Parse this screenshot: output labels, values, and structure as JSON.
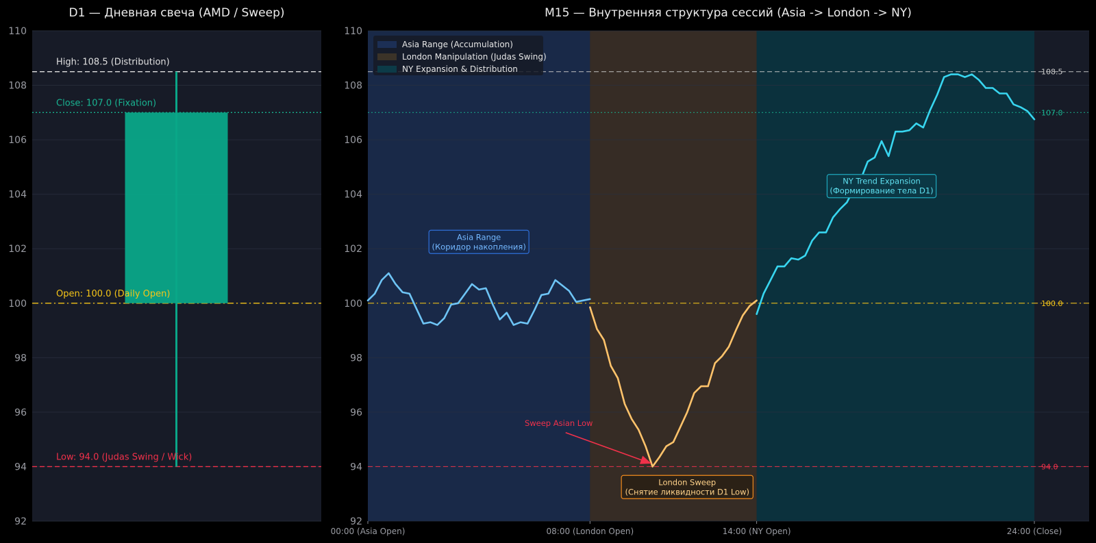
{
  "chart_data": [
    {
      "type": "candlestick",
      "title": "D1 — Дневная свеча (AMD / Sweep)",
      "ylim": [
        92,
        110
      ],
      "yticks": [
        92,
        94,
        96,
        98,
        100,
        102,
        104,
        106,
        108,
        110
      ],
      "candle": {
        "open": 100.0,
        "high": 108.5,
        "low": 94.0,
        "close": 107.0
      },
      "levels": [
        {
          "label": "High: 108.5 (Distribution)",
          "value": 108.5,
          "color": "#e0e0e0",
          "style": "dashed"
        },
        {
          "label": "Close: 107.0 (Fixation)",
          "value": 107.0,
          "color": "#19b391",
          "style": "dotted"
        },
        {
          "label": "Open: 100.0 (Daily Open)",
          "value": 100.0,
          "color": "#f5c518",
          "style": "dashdot"
        },
        {
          "label": "Low: 94.0 (Judas Swing / Wick)",
          "value": 94.0,
          "color": "#f0314a",
          "style": "dashed"
        }
      ],
      "colors": {
        "body": "#0aa688",
        "wick": "#0aa688"
      }
    },
    {
      "type": "line",
      "title": "M15 — Внутренняя структура сессий (Asia -> London -> NY)",
      "ylim": [
        92,
        110
      ],
      "xlim": [
        0,
        96
      ],
      "yticks": [
        92,
        94,
        96,
        98,
        100,
        102,
        104,
        106,
        108,
        110
      ],
      "xticks": [
        {
          "value": 0,
          "label": "00:00 (Asia Open)"
        },
        {
          "value": 32,
          "label": "08:00 (London Open)"
        },
        {
          "value": 56,
          "label": "14:00 (NY Open)"
        },
        {
          "value": 96,
          "label": "24:00 (Close)"
        }
      ],
      "legend": [
        {
          "label": "Asia Range (Accumulation)",
          "color": "#1c2f55"
        },
        {
          "label": "London Manipulation (Judas Swing)",
          "color": "#3b3328"
        },
        {
          "label": "NY Expansion & Distribution",
          "color": "#0c3b48"
        }
      ],
      "sessions": [
        {
          "name": "Asia Range (Accumulation)",
          "x0": 0,
          "x1": 32,
          "color": "#1a2b4c"
        },
        {
          "name": "London Manipulation (Judas Swing)",
          "x0": 32,
          "x1": 56,
          "color": "#3a2f26"
        },
        {
          "name": "NY Expansion & Distribution",
          "x0": 56,
          "x1": 96,
          "color": "#0a3440"
        }
      ],
      "levels": [
        {
          "value": 108.5,
          "label": "108.5",
          "color": "#c8c8c8",
          "style": "dashed"
        },
        {
          "value": 107.0,
          "label": "107.0",
          "color": "#19b391",
          "style": "dotted"
        },
        {
          "value": 100.0,
          "label": "100.0",
          "color": "#f5c518",
          "style": "dashdot"
        },
        {
          "value": 94.0,
          "label": "94.0",
          "color": "#f0314a",
          "style": "dashed"
        }
      ],
      "series": [
        {
          "color": "#6ec4f5",
          "x": [
            0,
            1,
            2,
            3,
            4,
            5,
            6,
            7,
            8,
            9,
            10,
            11,
            12,
            13,
            14,
            15,
            16,
            17,
            18,
            19,
            20,
            21,
            22,
            23,
            24,
            25,
            26,
            27,
            28,
            29,
            30,
            31,
            32
          ],
          "y": [
            100.1,
            100.35,
            100.85,
            101.1,
            100.7,
            100.4,
            100.35,
            99.8,
            99.25,
            99.3,
            99.2,
            99.45,
            99.95,
            100.0,
            100.35,
            100.7,
            100.5,
            100.55,
            99.95,
            99.4,
            99.65,
            99.2,
            99.3,
            99.25,
            99.75,
            100.3,
            100.35,
            100.85,
            100.65,
            100.45,
            100.05,
            100.1,
            100.15
          ]
        },
        {
          "color": "#ffc36b",
          "x": [
            32,
            33,
            34,
            35,
            36,
            37,
            38,
            39,
            40,
            41,
            42,
            43,
            44,
            45,
            46,
            47,
            48,
            49,
            50,
            51,
            52,
            53,
            54,
            55,
            56
          ],
          "y": [
            99.85,
            99.05,
            98.65,
            97.7,
            97.25,
            96.3,
            95.75,
            95.35,
            94.75,
            94.0,
            94.35,
            94.75,
            94.9,
            95.45,
            96.0,
            96.7,
            96.95,
            96.95,
            97.8,
            98.05,
            98.4,
            99.0,
            99.55,
            99.9,
            100.1
          ]
        },
        {
          "color": "#38d6f0",
          "x": [
            56,
            57,
            58,
            59,
            60,
            61,
            62,
            63,
            64,
            65,
            66,
            67,
            68,
            69,
            70,
            71,
            72,
            73,
            74,
            75,
            76,
            77,
            78,
            79,
            80,
            81,
            82,
            83,
            84,
            85,
            86,
            87,
            88,
            89,
            90,
            91,
            92,
            93,
            94,
            95,
            96
          ],
          "y": [
            99.6,
            100.35,
            100.85,
            101.35,
            101.35,
            101.65,
            101.6,
            101.75,
            102.3,
            102.6,
            102.6,
            103.15,
            103.45,
            103.7,
            104.2,
            104.55,
            105.2,
            105.35,
            105.95,
            105.4,
            106.3,
            106.3,
            106.35,
            106.6,
            106.45,
            107.1,
            107.65,
            108.3,
            108.4,
            108.4,
            108.3,
            108.4,
            108.2,
            107.9,
            107.9,
            107.7,
            107.7,
            107.3,
            107.2,
            107.05,
            106.75
          ]
        }
      ],
      "annotations": [
        {
          "type": "box",
          "lines": [
            "Asia Range",
            "(Коридор накопления)"
          ],
          "x": 16,
          "y": 102.25,
          "color": "#74b8ff",
          "border": "#2f6fd8",
          "bg": "#162a4e"
        },
        {
          "type": "box",
          "lines": [
            "London Sweep",
            "(Снятие ликвидности D1 Low)"
          ],
          "x": 46,
          "y": 93.25,
          "color": "#ffd28a",
          "border": "#f08a1c",
          "bg": "#2b2116"
        },
        {
          "type": "box",
          "lines": [
            "NY Trend Expansion",
            "(Формирование тела D1)"
          ],
          "x": 74,
          "y": 104.3,
          "color": "#5fe0f0",
          "border": "#1fa8bd",
          "bg": "#0b3845"
        },
        {
          "type": "arrow",
          "text": "Sweep Asian Low",
          "color": "#f0314a",
          "text_x": 27.5,
          "text_y": 95.5,
          "tip_x": 41,
          "tip_y": 94.05
        }
      ]
    }
  ]
}
